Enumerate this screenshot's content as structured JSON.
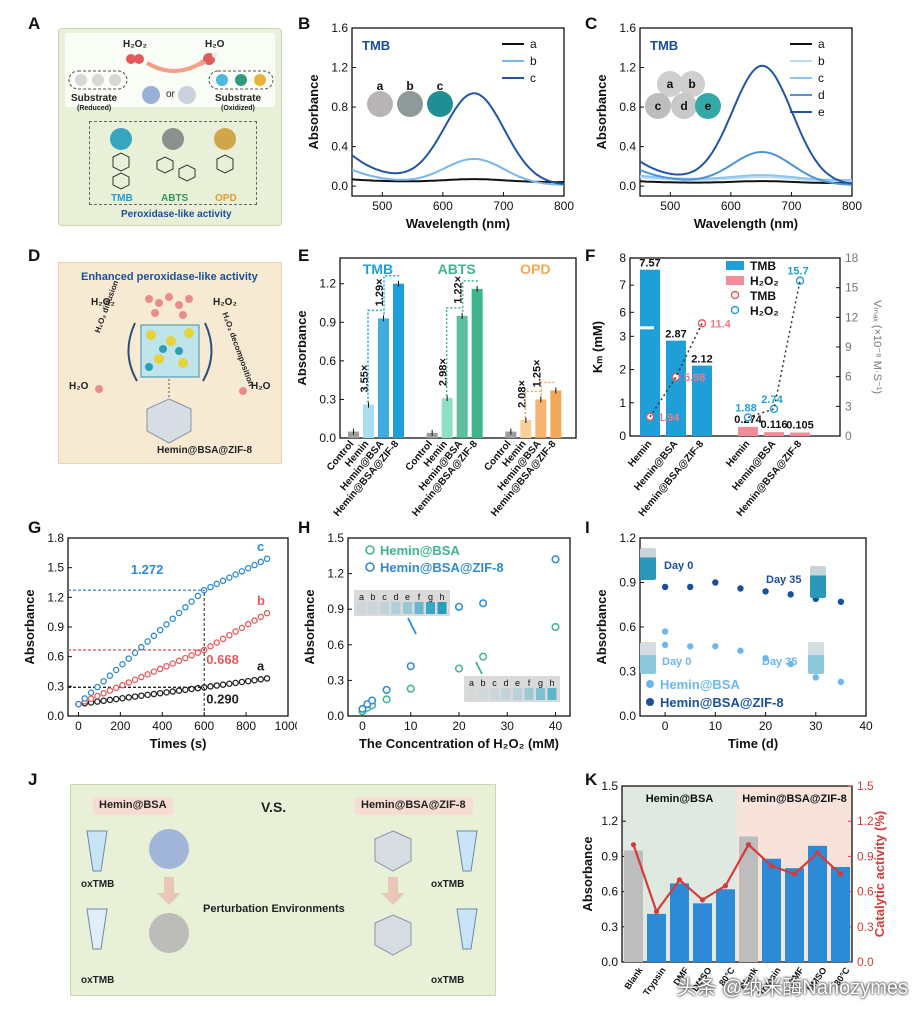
{
  "panels": {
    "A": {
      "letter": "A",
      "h2o2": "H₂O₂",
      "h2o": "H₂O",
      "substrate_reduced": "Substrate",
      "reduced": "(Reduced)",
      "or": "or",
      "substrate_oxidized": "Substrate",
      "oxidized": "(Oxidized)",
      "tmb": "TMB",
      "abts": "ABTS",
      "opd": "OPD",
      "footer": "Peroxidase-like activity"
    },
    "B": {
      "letter": "B",
      "inset_title": "TMB",
      "vial_labels": [
        "a",
        "b",
        "c"
      ]
    },
    "C": {
      "letter": "C",
      "inset_title": "TMB",
      "vial_labels": [
        "a",
        "b",
        "c",
        "d",
        "e"
      ]
    },
    "D": {
      "letter": "D",
      "title": "Enhanced peroxidase-like activity",
      "h2o2_left": "H₂O₂",
      "h2o2_right": "H₂O₂",
      "h2o_left": "H₂O",
      "h2o_right": "H₂O",
      "diffusion": "H₂O₂ diffusion",
      "decomposition": "H₂O₂ decomposition",
      "caption": "Hemin@BSA@ZIF-8"
    },
    "E": {
      "letter": "E"
    },
    "F": {
      "letter": "F"
    },
    "G": {
      "letter": "G"
    },
    "H": {
      "letter": "H"
    },
    "I": {
      "letter": "I",
      "day0_top": "Day 0",
      "day35_top": "Day 35",
      "day0_bottom": "Day 0",
      "day35_bottom": "Day 35"
    },
    "J": {
      "letter": "J",
      "left_title": "Hemin@BSA",
      "vs": "V.S.",
      "right_title": "Hemin@BSA@ZIF-8",
      "oxtmb": "oxTMB",
      "middle": "Perturbation Environments"
    },
    "K": {
      "letter": "K",
      "left_band": "Hemin@BSA",
      "right_band": "Hemin@BSA@ZIF-8"
    }
  },
  "chart_data": [
    {
      "id": "B",
      "type": "line",
      "xlabel": "Wavelength (nm)",
      "ylabel": "Absorbance",
      "xlim": [
        450,
        800
      ],
      "ylim": [
        -0.1,
        1.6
      ],
      "xticks": [
        500,
        600,
        700,
        800
      ],
      "yticks": [
        0.0,
        0.4,
        0.8,
        1.2,
        1.6
      ],
      "legend": "top-right",
      "series": [
        {
          "name": "a",
          "color": "#111111",
          "peak": 0.03,
          "base": 0.03
        },
        {
          "name": "b",
          "color": "#79b6ea",
          "peak": 0.26,
          "base": 0.17
        },
        {
          "name": "c",
          "color": "#1f56a8",
          "peak": 0.92,
          "base": 0.35
        }
      ]
    },
    {
      "id": "C",
      "type": "line",
      "xlabel": "Wavelength (nm)",
      "ylabel": "Absorbance",
      "xlim": [
        450,
        800
      ],
      "ylim": [
        -0.1,
        1.6
      ],
      "xticks": [
        500,
        600,
        700,
        800
      ],
      "yticks": [
        0.0,
        0.4,
        0.8,
        1.2,
        1.6
      ],
      "legend": "top-right",
      "series": [
        {
          "name": "a",
          "color": "#111111",
          "peak": 0.02,
          "base": 0.02
        },
        {
          "name": "b",
          "color": "#bcdcf6",
          "peak": 0.04,
          "base": 0.04
        },
        {
          "name": "c",
          "color": "#8cc4ef",
          "peak": 0.05,
          "base": 0.05
        },
        {
          "name": "d",
          "color": "#4d94d8",
          "peak": 0.33,
          "base": 0.17
        },
        {
          "name": "e",
          "color": "#1f56a8",
          "peak": 1.2,
          "base": 0.3
        }
      ]
    },
    {
      "id": "E",
      "type": "bar",
      "ylabel": "Absorbance",
      "ylim": [
        0.0,
        1.4
      ],
      "yticks": [
        0.0,
        0.3,
        0.6,
        0.9,
        1.2
      ],
      "groups": [
        {
          "name": "TMB",
          "color": "#1e9fd8",
          "values": [
            0.05,
            0.26,
            0.93,
            1.2
          ],
          "ratios": [
            "3.55×",
            "1.29×"
          ]
        },
        {
          "name": "ABTS",
          "color": "#3fb58c",
          "values": [
            0.04,
            0.31,
            0.95,
            1.16
          ],
          "ratios": [
            "2.98×",
            "1.22×"
          ]
        },
        {
          "name": "OPD",
          "color": "#f3a857",
          "values": [
            0.05,
            0.14,
            0.3,
            0.37
          ],
          "ratios": [
            "2.08×",
            "1.25×"
          ]
        }
      ],
      "categories": [
        "Control",
        "Hemin",
        "Hemin@BSA",
        "Hemin@BSA@ZIF-8"
      ]
    },
    {
      "id": "F",
      "type": "bar",
      "ylabel_left": "Kₘ (mM)",
      "ylabel_right": "Vₘₐₓ (×10⁻⁸ M·S⁻¹)",
      "yticks_left": [
        0,
        1,
        2,
        3,
        4,
        5,
        6,
        7,
        8
      ],
      "yticks_right": [
        0,
        3,
        6,
        9,
        12,
        15,
        18
      ],
      "legend": "top-right",
      "legend_entries": [
        "TMB",
        "H₂O₂",
        "TMB",
        "H₂O₂"
      ],
      "categories": [
        "Hemin",
        "Hemin@BSA",
        "Hemin@BSA@ZIF-8",
        "Hemin",
        "Hemin@BSA",
        "Hemin@BSA@ZIF-8"
      ],
      "km_tmb": [
        7.57,
        2.87,
        2.12
      ],
      "km_h2o2": [
        0.274,
        0.116,
        0.105
      ],
      "vmax_tmb": [
        1.94,
        5.98,
        11.4
      ],
      "vmax_h2o2": [
        1.88,
        2.74,
        15.7
      ]
    },
    {
      "id": "G",
      "type": "scatter",
      "xlabel": "Times (s)",
      "ylabel": "Absorbance",
      "xlim": [
        -50,
        1000
      ],
      "ylim": [
        0.0,
        1.8
      ],
      "xticks": [
        0,
        200,
        400,
        600,
        800,
        1000
      ],
      "yticks": [
        0.0,
        0.3,
        0.6,
        0.9,
        1.2,
        1.5,
        1.8
      ],
      "series": [
        {
          "name": "a",
          "color": "#222222",
          "start": 0.12,
          "at600": 0.29,
          "end": 0.38
        },
        {
          "name": "b",
          "color": "#e85a5a",
          "start": 0.12,
          "at600": 0.668,
          "end": 1.04
        },
        {
          "name": "c",
          "color": "#2c8ad6",
          "start": 0.12,
          "at600": 1.272,
          "end": 1.59
        }
      ],
      "annotations": [
        "1.272",
        "0.668",
        "0.290"
      ]
    },
    {
      "id": "H",
      "type": "scatter",
      "xlabel": "The Concentration of H₂O₂ (mM)",
      "ylabel": "Absorbance",
      "xlim": [
        -3,
        43
      ],
      "ylim": [
        0.0,
        1.5
      ],
      "xticks": [
        0,
        10,
        20,
        30,
        40
      ],
      "yticks": [
        0.0,
        0.3,
        0.6,
        0.9,
        1.2,
        1.5
      ],
      "legend": "top-left",
      "series": [
        {
          "name": "Hemin@BSA",
          "color": "#3fb58c",
          "points": [
            [
              0,
              0.04
            ],
            [
              1,
              0.07
            ],
            [
              2,
              0.09
            ],
            [
              5,
              0.14
            ],
            [
              10,
              0.23
            ],
            [
              20,
              0.4
            ],
            [
              25,
              0.5
            ],
            [
              40,
              0.75
            ]
          ]
        },
        {
          "name": "Hemin@BSA@ZIF-8",
          "color": "#2c8ad6",
          "points": [
            [
              0,
              0.06
            ],
            [
              1,
              0.1
            ],
            [
              2,
              0.13
            ],
            [
              5,
              0.22
            ],
            [
              10,
              0.42
            ],
            [
              20,
              0.92
            ],
            [
              25,
              0.95
            ],
            [
              40,
              1.32
            ]
          ]
        }
      ],
      "inset_labels": [
        "a",
        "b",
        "c",
        "d",
        "e",
        "f",
        "g",
        "h"
      ]
    },
    {
      "id": "I",
      "type": "scatter",
      "xlabel": "Time (d)",
      "ylabel": "Absorbance",
      "xlim": [
        -5,
        40
      ],
      "ylim": [
        0.0,
        1.2
      ],
      "xticks": [
        0,
        10,
        20,
        30,
        40
      ],
      "yticks": [
        0.0,
        0.3,
        0.6,
        0.9,
        1.2
      ],
      "legend": "bottom-left",
      "series": [
        {
          "name": "Hemin@BSA",
          "color": "#6ab8ee",
          "points": [
            [
              0,
              0.57
            ],
            [
              0,
              0.48
            ],
            [
              5,
              0.47
            ],
            [
              10,
              0.47
            ],
            [
              15,
              0.44
            ],
            [
              20,
              0.39
            ],
            [
              25,
              0.35
            ],
            [
              30,
              0.26
            ],
            [
              35,
              0.23
            ]
          ]
        },
        {
          "name": "Hemin@BSA@ZIF-8",
          "color": "#1a4f9e",
          "points": [
            [
              0,
              0.87
            ],
            [
              5,
              0.87
            ],
            [
              10,
              0.9
            ],
            [
              15,
              0.86
            ],
            [
              20,
              0.84
            ],
            [
              25,
              0.82
            ],
            [
              30,
              0.79
            ],
            [
              35,
              0.77
            ]
          ]
        }
      ]
    },
    {
      "id": "K",
      "type": "bar",
      "ylabel_left": "Absorbance",
      "ylabel_right": "Catalytic activity (%)",
      "ylim": [
        0.0,
        1.5
      ],
      "yticks": [
        0.0,
        0.3,
        0.6,
        0.9,
        1.2,
        1.5
      ],
      "tick_labels": [
        "Blank",
        "Trypsin",
        "DMF",
        "DMSO",
        "80°C",
        "Blank",
        "Trypsin",
        "DMF",
        "DMSO",
        "80°C"
      ],
      "bar_values": [
        0.95,
        0.41,
        0.67,
        0.5,
        0.62,
        1.07,
        0.88,
        0.8,
        0.99,
        0.81
      ],
      "line_values": [
        1.0,
        0.43,
        0.7,
        0.53,
        0.65,
        1.0,
        0.82,
        0.75,
        0.93,
        0.75
      ],
      "colors": {
        "blank": "#bdbdbd",
        "bar": "#2c8ad6",
        "line": "#d63b3b"
      }
    }
  ],
  "watermark": "头条 @纳米酶Nanozymes"
}
